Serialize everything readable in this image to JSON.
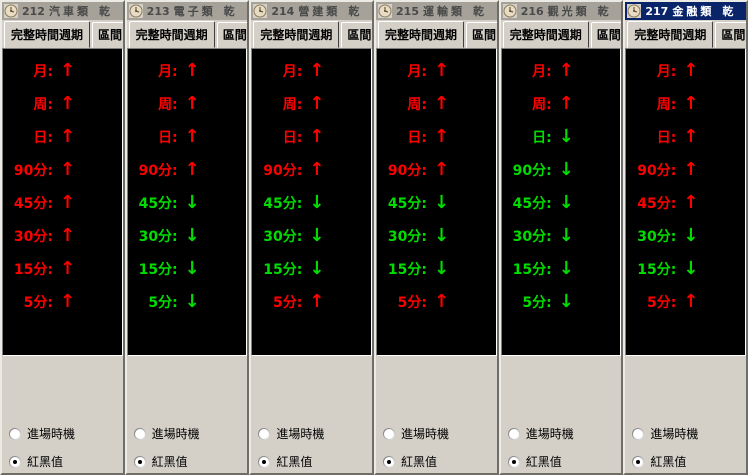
{
  "window": {
    "title_suffix": "乾",
    "tabs": [
      {
        "label": "完整時間週期",
        "selected": true
      },
      {
        "label": "區間",
        "selected": false
      }
    ],
    "radios": [
      {
        "label": "進場時機",
        "selected": false
      },
      {
        "label": "紅黑值",
        "selected": true
      }
    ]
  },
  "periods": [
    "月:",
    "周:",
    "日:",
    "90分:",
    "45分:",
    "30分:",
    "15分:",
    "5分:"
  ],
  "arrows": {
    "up": "↑",
    "down": "↓"
  },
  "colors": {
    "up": "#ff0000",
    "down": "#00dd00",
    "active_titlebar": "#0a246a",
    "inactive_titlebar": "#a6a29a",
    "inactive_titlebar_text": "#4a4a4a",
    "panel_background": "#000000",
    "chrome_background": "#d4d0c8"
  },
  "panels": [
    {
      "code": "212",
      "category": "汽車類",
      "active": false,
      "signals": [
        "up",
        "up",
        "up",
        "up",
        "up",
        "up",
        "up",
        "up"
      ]
    },
    {
      "code": "213",
      "category": "電子類",
      "active": false,
      "signals": [
        "up",
        "up",
        "up",
        "up",
        "down",
        "down",
        "down",
        "down"
      ]
    },
    {
      "code": "214",
      "category": "營建類",
      "active": false,
      "signals": [
        "up",
        "up",
        "up",
        "up",
        "down",
        "down",
        "down",
        "up"
      ]
    },
    {
      "code": "215",
      "category": "運輸類",
      "active": false,
      "signals": [
        "up",
        "up",
        "up",
        "up",
        "down",
        "down",
        "down",
        "up"
      ]
    },
    {
      "code": "216",
      "category": "觀光類",
      "active": false,
      "signals": [
        "up",
        "up",
        "down",
        "down",
        "down",
        "down",
        "down",
        "down"
      ]
    },
    {
      "code": "217",
      "category": "金融類",
      "active": true,
      "signals": [
        "up",
        "up",
        "up",
        "up",
        "up",
        "down",
        "down",
        "up"
      ]
    }
  ]
}
